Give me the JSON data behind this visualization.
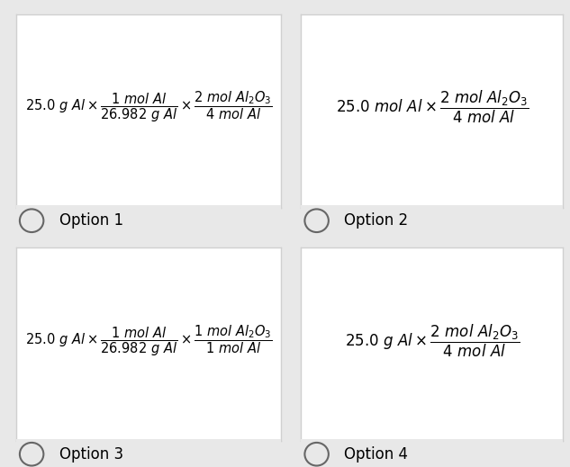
{
  "bg_color": "#e8e8e8",
  "card_color": "#ffffff",
  "card_edge_color": "#d0d0d0",
  "option_label_color": "#000000",
  "radio_color": "#666666",
  "formulas": [
    {
      "label": "Option 1",
      "latex": "$\\mathit{25.0\\ g\\ Al} \\times \\dfrac{\\mathit{1\\ mol\\ Al}}{\\mathit{26.982\\ g\\ Al}} \\times \\dfrac{\\mathit{2\\ mol\\ Al_2O_3}}{\\mathit{4\\ mol\\ Al}}$",
      "fontsize": 10.5
    },
    {
      "label": "Option 2",
      "latex": "$\\mathit{25.0\\ mol\\ Al} \\times \\dfrac{\\mathit{2\\ mol\\ Al_2O_3}}{\\mathit{4\\ mol\\ Al}}$",
      "fontsize": 12
    },
    {
      "label": "Option 3",
      "latex": "$\\mathit{25.0\\ g\\ Al} \\times \\dfrac{\\mathit{1\\ mol\\ Al}}{\\mathit{26.982\\ g\\ Al}} \\times \\dfrac{\\mathit{1\\ mol\\ Al_2O_3}}{\\mathit{1\\ mol\\ Al}}$",
      "fontsize": 10.5
    },
    {
      "label": "Option 4",
      "latex": "$\\mathit{25.0\\ g\\ Al} \\times \\dfrac{\\mathit{2\\ mol\\ Al_2O_3}}{\\mathit{4\\ mol\\ Al}}$",
      "fontsize": 12
    }
  ],
  "label_fontsize": 12,
  "fig_width": 6.33,
  "fig_height": 5.19,
  "dpi": 100
}
